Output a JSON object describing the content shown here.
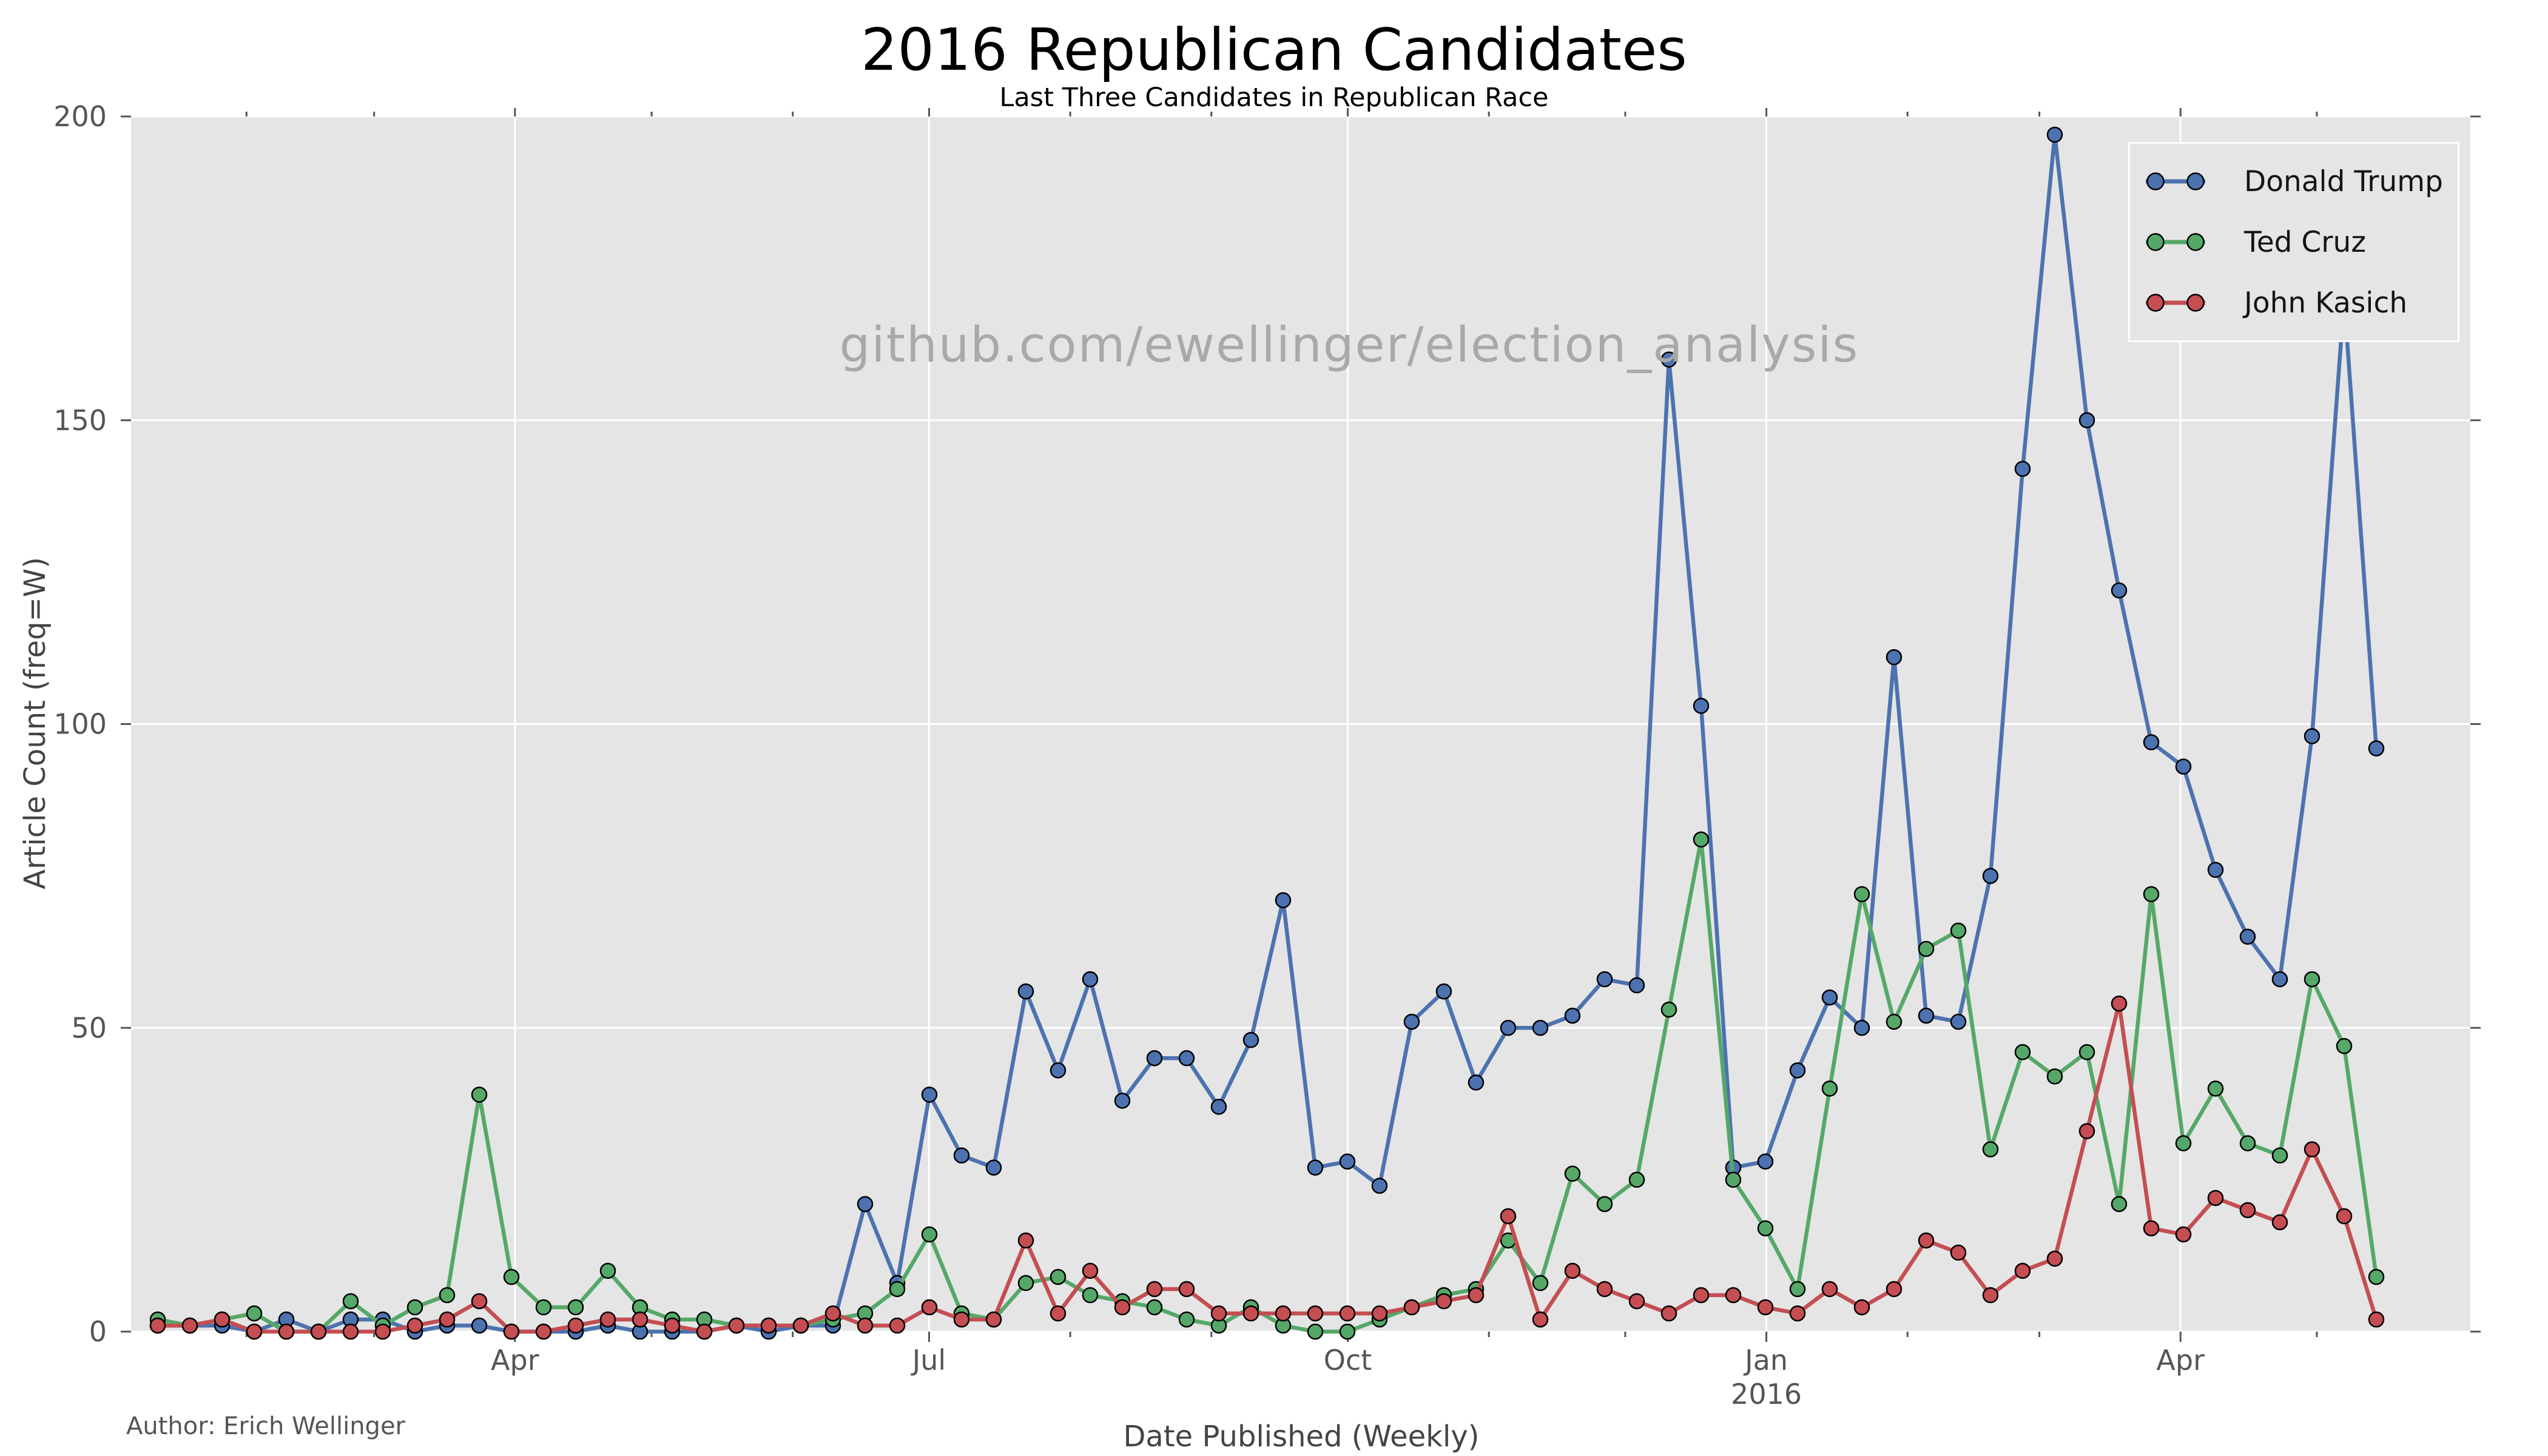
{
  "header": {
    "title": "2016 Republican Candidates",
    "subtitle": "Last Three Candidates in Republican Race"
  },
  "watermark": "github.com/ewellinger/election_analysis",
  "footer": {
    "author": "Author: Erich Wellinger"
  },
  "axes": {
    "x_label": "Date Published (Weekly)",
    "y_label": "Article Count (freq=W)"
  },
  "colors": {
    "plot_background": "#e5e5e5",
    "grid": "#ffffff",
    "tick_text": "#555555",
    "marker_edge": "#000000",
    "watermark": "#a9a9a9"
  },
  "chart_data": {
    "type": "line",
    "x_description": "Weekly article counts, one point per week from mid-Jan 2015 through mid-May 2016 (70 points, week index 0-69)",
    "n_points": 70,
    "ylim": [
      0,
      200
    ],
    "yticks": [
      0,
      50,
      100,
      150,
      200
    ],
    "xticks": [
      {
        "week": 11.11,
        "label": "Apr"
      },
      {
        "week": 23.99,
        "label": "Jul"
      },
      {
        "week": 37.01,
        "label": "Oct"
      },
      {
        "week": 50.03,
        "label": "Jan",
        "label2": "2016"
      },
      {
        "week": 62.91,
        "label": "Apr"
      }
    ],
    "xticks_minor_weeks": [
      2.76,
      6.73,
      15.36,
      19.75,
      28.38,
      32.77,
      41.4,
      45.64,
      54.42,
      58.52,
      67.15
    ],
    "grid": true,
    "legend_position": "upper right",
    "marker": "circle",
    "series": [
      {
        "name": "Donald Trump",
        "color": "#4C72B0",
        "values": [
          1,
          1,
          1,
          0,
          2,
          0,
          2,
          2,
          0,
          1,
          1,
          0,
          0,
          0,
          1,
          0,
          0,
          0,
          1,
          0,
          1,
          1,
          21,
          8,
          39,
          29,
          27,
          56,
          43,
          58,
          38,
          45,
          45,
          37,
          48,
          71,
          27,
          28,
          24,
          51,
          56,
          41,
          50,
          50,
          52,
          58,
          57,
          160,
          103,
          27,
          28,
          43,
          55,
          50,
          111,
          52,
          51,
          75,
          142,
          197,
          150,
          122,
          97,
          93,
          76,
          65,
          58,
          98,
          170,
          96
        ]
      },
      {
        "name": "Ted Cruz",
        "color": "#55A868",
        "values": [
          2,
          1,
          2,
          3,
          0,
          0,
          5,
          1,
          4,
          6,
          39,
          9,
          4,
          4,
          10,
          4,
          2,
          2,
          1,
          1,
          1,
          2,
          3,
          7,
          16,
          3,
          2,
          8,
          9,
          6,
          5,
          4,
          2,
          1,
          4,
          1,
          0,
          0,
          2,
          4,
          6,
          7,
          15,
          8,
          26,
          21,
          25,
          53,
          81,
          25,
          17,
          7,
          40,
          72,
          51,
          63,
          66,
          30,
          46,
          42,
          46,
          21,
          72,
          31,
          40,
          31,
          29,
          58,
          47,
          9
        ]
      },
      {
        "name": "John Kasich",
        "color": "#C44E52",
        "values": [
          1,
          1,
          2,
          0,
          0,
          0,
          0,
          0,
          1,
          2,
          5,
          0,
          0,
          1,
          2,
          2,
          1,
          0,
          1,
          1,
          1,
          3,
          1,
          1,
          4,
          2,
          2,
          15,
          3,
          10,
          4,
          7,
          7,
          3,
          3,
          3,
          3,
          3,
          3,
          4,
          5,
          6,
          19,
          2,
          10,
          7,
          5,
          3,
          6,
          6,
          4,
          3,
          7,
          4,
          7,
          15,
          13,
          6,
          10,
          12,
          33,
          54,
          17,
          16,
          22,
          20,
          18,
          30,
          19,
          2
        ]
      }
    ]
  }
}
